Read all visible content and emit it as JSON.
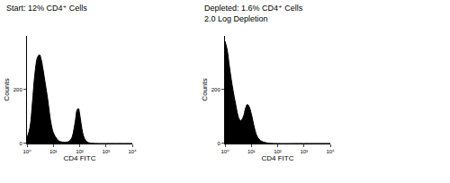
{
  "chart_data": [
    {
      "type": "area",
      "title": "Start: 12% CD4⁺ Cells",
      "x_label": "CD4 FITC",
      "y_label": "Counts",
      "color": "#000000",
      "log": "x",
      "x": [
        1,
        1.3,
        1.6,
        2,
        2.5,
        3,
        3.5,
        4,
        5,
        6,
        7,
        8,
        10,
        13,
        16,
        20,
        25,
        32,
        40,
        50,
        60,
        70,
        80,
        90,
        100,
        115,
        130,
        150,
        180,
        220,
        300,
        500,
        1000,
        10000
      ],
      "values": [
        20,
        60,
        150,
        260,
        320,
        330,
        310,
        280,
        220,
        170,
        120,
        80,
        40,
        20,
        10,
        6,
        5,
        5,
        8,
        20,
        50,
        90,
        125,
        130,
        110,
        70,
        40,
        20,
        8,
        3,
        1,
        0,
        0,
        0
      ],
      "xlim": [
        1,
        10000
      ],
      "xticks": [
        {
          "value": 1,
          "label": "10⁰"
        },
        {
          "value": 10,
          "label": "10¹"
        },
        {
          "value": 100,
          "label": "10²"
        },
        {
          "value": 1000,
          "label": "10³"
        },
        {
          "value": 10000,
          "label": "10⁴"
        }
      ],
      "ylim": [
        0,
        400
      ],
      "yticks": [
        0,
        200
      ],
      "grid": false
    },
    {
      "type": "area",
      "title": "Depleted: 1.6% CD4⁺ Cells",
      "subtitle": "2.0 Log Depletion",
      "x_label": "CD4 FITC",
      "y_label": "Counts",
      "color": "#000000",
      "log": "x",
      "x": [
        1,
        1.2,
        1.5,
        2,
        2.5,
        3,
        3.5,
        4,
        5,
        6,
        7,
        8,
        10,
        13,
        16,
        20,
        25,
        32,
        40,
        50,
        100,
        1000,
        10000
      ],
      "values": [
        380,
        350,
        280,
        200,
        150,
        110,
        90,
        85,
        100,
        130,
        145,
        140,
        110,
        60,
        30,
        15,
        8,
        4,
        2,
        1,
        0,
        0,
        0
      ],
      "xlim": [
        1,
        10000
      ],
      "xticks": [
        {
          "value": 1,
          "label": "10⁰"
        },
        {
          "value": 10,
          "label": "10¹"
        },
        {
          "value": 100,
          "label": "10²"
        },
        {
          "value": 1000,
          "label": "10³"
        },
        {
          "value": 10000,
          "label": "10⁴"
        }
      ],
      "ylim": [
        0,
        400
      ],
      "yticks": [
        0,
        200
      ],
      "grid": false
    }
  ]
}
